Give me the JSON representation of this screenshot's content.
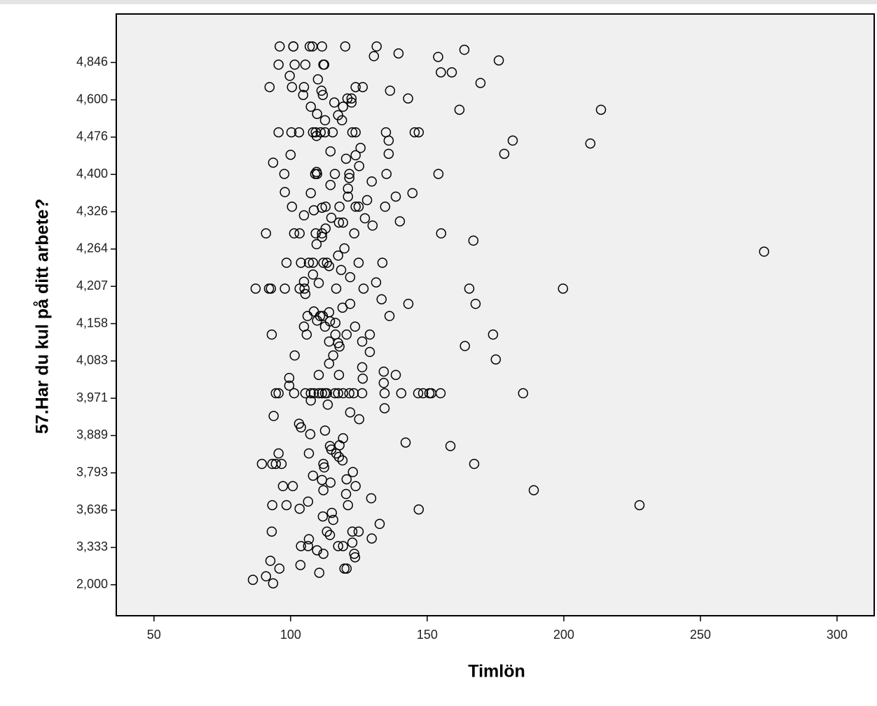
{
  "chart_data": {
    "type": "scatter",
    "x_label": "Timlön",
    "y_label": "57.Har du kul på ditt arbete?",
    "xlim": [
      36.2,
      313.6
    ],
    "xticks": [
      50,
      100,
      150,
      200,
      250,
      300
    ],
    "ylim": [
      0.893,
      5.166
    ],
    "yticks": [
      {
        "value": 2.0,
        "label": "2,000"
      },
      {
        "value": 3.333,
        "label": "3,333"
      },
      {
        "value": 3.636,
        "label": "3,636"
      },
      {
        "value": 3.793,
        "label": "3,793"
      },
      {
        "value": 3.889,
        "label": "3,889"
      },
      {
        "value": 3.971,
        "label": "3,971"
      },
      {
        "value": 4.083,
        "label": "4,083"
      },
      {
        "value": 4.158,
        "label": "4,158"
      },
      {
        "value": 4.207,
        "label": "4,207"
      },
      {
        "value": 4.264,
        "label": "4,264"
      },
      {
        "value": 4.326,
        "label": "4,326"
      },
      {
        "value": 4.4,
        "label": "4,400"
      },
      {
        "value": 4.476,
        "label": "4,476"
      },
      {
        "value": 4.6,
        "label": "4,600"
      },
      {
        "value": 4.846,
        "label": "4,846"
      }
    ],
    "color": "#000000",
    "background": "#f0f0f0",
    "x": [
      96,
      101,
      101,
      107,
      108,
      111.5,
      120,
      131.5,
      163.6,
      139.5,
      130.5,
      154,
      176.2,
      95.6,
      101.5,
      105.4,
      112,
      112.3,
      155,
      159,
      99.7,
      110,
      169.5,
      92.3,
      100.5,
      104.9,
      123.8,
      126.4,
      136.4,
      111.3,
      120.8,
      122.3,
      143,
      111.8,
      104.6,
      116,
      122.3,
      119.2,
      107.4,
      161.8,
      213.6,
      109.7,
      117.4,
      112.6,
      118.8,
      95.6,
      100.3,
      103.1,
      108.2,
      109.2,
      111,
      112.6,
      115.4,
      122.6,
      123.8,
      134.9,
      145.4,
      146.9,
      181.3,
      135.9,
      109.5,
      209.7,
      125.6,
      114.6,
      135.9,
      178.2,
      100,
      123.8,
      120.3,
      93.6,
      125.1,
      97.7,
      109,
      109.7,
      116.2,
      121.5,
      135.1,
      154.1,
      109.5,
      121.5,
      129.7,
      114.6,
      121,
      97.9,
      107.4,
      138.5,
      121,
      144.6,
      128,
      100.5,
      108.5,
      104.9,
      111.5,
      112.8,
      117.9,
      123.8,
      124.9,
      134.6,
      114.9,
      119.2,
      117.7,
      140,
      127.2,
      130,
      91,
      101.3,
      103.3,
      109.2,
      111.5,
      123.3,
      155.1,
      112.8,
      111.5,
      166.9,
      109.5,
      119.7,
      117.4,
      273.3,
      98.5,
      103.8,
      106.7,
      108.2,
      112,
      113.3,
      124.9,
      133.6,
      114.1,
      118.5,
      108.2,
      121.8,
      131.3,
      110.3,
      104.9,
      87.2,
      92.1,
      92.8,
      97.9,
      103.3,
      105.1,
      116.7,
      126.7,
      165.4,
      199.7,
      105.4,
      133.3,
      143.1,
      167.7,
      119,
      121.8,
      108.5,
      110.8,
      111.8,
      136.2,
      106.2,
      114.1,
      114.4,
      116.4,
      109.7,
      104.9,
      112.6,
      123.6,
      105.9,
      116.4,
      120.5,
      129,
      93.1,
      174.1,
      114.1,
      117.4,
      117.9,
      126.2,
      163.8,
      129,
      115.6,
      101.5,
      175.1,
      114.1,
      126.2,
      134.1,
      138.5,
      126.4,
      117.7,
      110.3,
      99.5,
      134.1,
      99.5,
      94.6,
      95.6,
      101.3,
      105.4,
      107.4,
      108.5,
      110.3,
      111.5,
      112.6,
      113.3,
      116.2,
      117.4,
      119.2,
      121.5,
      123.1,
      126.2,
      134.4,
      140.5,
      146.7,
      148.5,
      150.8,
      151.5,
      154.9,
      185.1,
      107.4,
      113.6,
      134.4,
      121.8,
      93.8,
      125.1,
      103.1,
      103.8,
      112.6,
      107.2,
      119.2,
      142.1,
      114.4,
      158.5,
      117.9,
      114.9,
      95.6,
      106.7,
      116.7,
      117.7,
      119,
      112,
      89.5,
      93.3,
      94.6,
      96.7,
      167.2,
      112.3,
      122.8,
      108.2,
      120.5,
      114.6,
      111.5,
      97.2,
      100.8,
      123.8,
      189,
      112,
      120.3,
      129.5,
      93.3,
      98.5,
      106.4,
      103.3,
      121,
      146.9,
      227.7,
      111.8,
      115.1,
      115.6,
      132.6,
      93.1,
      113.3,
      114.4,
      122.6,
      124.9,
      106.7,
      129.7,
      122.6,
      103.8,
      106.4,
      117.4,
      119.2,
      109.7,
      112,
      123.3,
      123.6,
      92.6,
      103.6,
      119.7,
      120.5,
      95.9,
      110.5,
      91,
      86.2,
      93.6
    ],
    "y": [
      4.952,
      4.952,
      4.952,
      4.952,
      4.952,
      4.952,
      4.952,
      4.952,
      4.93,
      4.906,
      4.888,
      4.883,
      4.86,
      4.832,
      4.832,
      4.832,
      4.832,
      4.832,
      4.781,
      4.781,
      4.758,
      4.735,
      4.711,
      4.684,
      4.684,
      4.684,
      4.684,
      4.684,
      4.66,
      4.66,
      4.609,
      4.609,
      4.609,
      4.632,
      4.632,
      4.591,
      4.591,
      4.577,
      4.577,
      4.567,
      4.567,
      4.553,
      4.549,
      4.532,
      4.532,
      4.492,
      4.492,
      4.492,
      4.492,
      4.492,
      4.492,
      4.492,
      4.492,
      4.492,
      4.492,
      4.492,
      4.492,
      4.492,
      4.469,
      4.469,
      4.48,
      4.463,
      4.454,
      4.447,
      4.442,
      4.442,
      4.44,
      4.439,
      4.432,
      4.424,
      4.417,
      4.401,
      4.401,
      4.401,
      4.401,
      4.401,
      4.401,
      4.401,
      4.405,
      4.393,
      4.386,
      4.379,
      4.372,
      4.365,
      4.363,
      4.356,
      4.356,
      4.363,
      4.349,
      4.336,
      4.329,
      4.32,
      4.334,
      4.336,
      4.336,
      4.336,
      4.336,
      4.336,
      4.316,
      4.308,
      4.308,
      4.31,
      4.315,
      4.303,
      4.29,
      4.29,
      4.29,
      4.29,
      4.29,
      4.29,
      4.29,
      4.298,
      4.284,
      4.278,
      4.272,
      4.265,
      4.254,
      4.26,
      4.243,
      4.243,
      4.243,
      4.243,
      4.243,
      4.243,
      4.243,
      4.243,
      4.238,
      4.232,
      4.225,
      4.221,
      4.213,
      4.212,
      4.214,
      4.204,
      4.204,
      4.204,
      4.204,
      4.204,
      4.204,
      4.204,
      4.204,
      4.204,
      4.204,
      4.197,
      4.19,
      4.184,
      4.184,
      4.179,
      4.184,
      4.174,
      4.168,
      4.168,
      4.168,
      4.168,
      4.173,
      4.161,
      4.159,
      4.162,
      4.152,
      4.152,
      4.152,
      4.136,
      4.136,
      4.136,
      4.136,
      4.136,
      4.136,
      4.122,
      4.119,
      4.112,
      4.122,
      4.113,
      4.101,
      4.094,
      4.094,
      4.086,
      4.075,
      4.064,
      4.051,
      4.041,
      4.03,
      4.041,
      4.041,
      4.032,
      4.017,
      4.009,
      3.986,
      3.986,
      3.986,
      3.986,
      3.986,
      3.986,
      3.986,
      3.986,
      3.986,
      3.986,
      3.986,
      3.986,
      3.986,
      3.986,
      3.986,
      3.986,
      3.986,
      3.986,
      3.986,
      3.986,
      3.986,
      3.986,
      3.986,
      3.986,
      3.966,
      3.957,
      3.949,
      3.94,
      3.932,
      3.925,
      3.915,
      3.907,
      3.9,
      3.892,
      3.882,
      3.871,
      3.862,
      3.862,
      3.864,
      3.853,
      3.843,
      3.843,
      3.843,
      3.834,
      3.825,
      3.816,
      3.816,
      3.816,
      3.816,
      3.816,
      3.816,
      3.807,
      3.795,
      3.781,
      3.766,
      3.752,
      3.763,
      3.737,
      3.737,
      3.737,
      3.72,
      3.72,
      3.704,
      3.686,
      3.657,
      3.657,
      3.672,
      3.642,
      3.657,
      3.639,
      3.657,
      3.585,
      3.614,
      3.557,
      3.524,
      3.462,
      3.462,
      3.434,
      3.462,
      3.462,
      3.4,
      3.406,
      3.372,
      3.344,
      3.344,
      3.344,
      3.344,
      3.232,
      3.107,
      3.107,
      2.981,
      2.855,
      2.704,
      2.578,
      2.578,
      2.578,
      2.428,
      2.302,
      2.176,
      2.05
    ]
  }
}
